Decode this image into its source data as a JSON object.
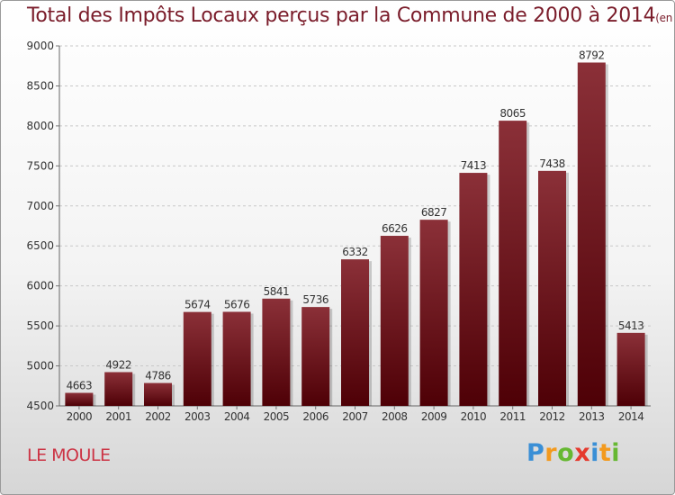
{
  "chart_data": {
    "type": "bar",
    "title": "Total des Impôts Locaux perçus par la Commune de 2000 à 2014",
    "unit": "(en milliers d'€)",
    "categories": [
      "2000",
      "2001",
      "2002",
      "2003",
      "2004",
      "2005",
      "2006",
      "2007",
      "2008",
      "2009",
      "2010",
      "2011",
      "2012",
      "2013",
      "2014"
    ],
    "values": [
      4663,
      4922,
      4786,
      5674,
      5676,
      5841,
      5736,
      6332,
      6626,
      6827,
      7413,
      8065,
      7438,
      8792,
      5413
    ],
    "ylim": [
      4500,
      9000
    ],
    "yticks": [
      4500,
      5000,
      5500,
      6000,
      6500,
      7000,
      7500,
      8000,
      8500,
      9000
    ],
    "xlabel": "",
    "ylabel": "",
    "grid": true,
    "bar_color_top": "#8b3038",
    "bar_color_bottom": "#4e0006"
  },
  "commune": "LE MOULE",
  "brand": {
    "letters": [
      "P",
      "r",
      "o",
      "x",
      "i",
      "t",
      "i"
    ],
    "colors": [
      "#3a8fd6",
      "#f39a1e",
      "#66b832",
      "#e53a2e",
      "#3a8fd6",
      "#f39a1e",
      "#66b832"
    ]
  }
}
